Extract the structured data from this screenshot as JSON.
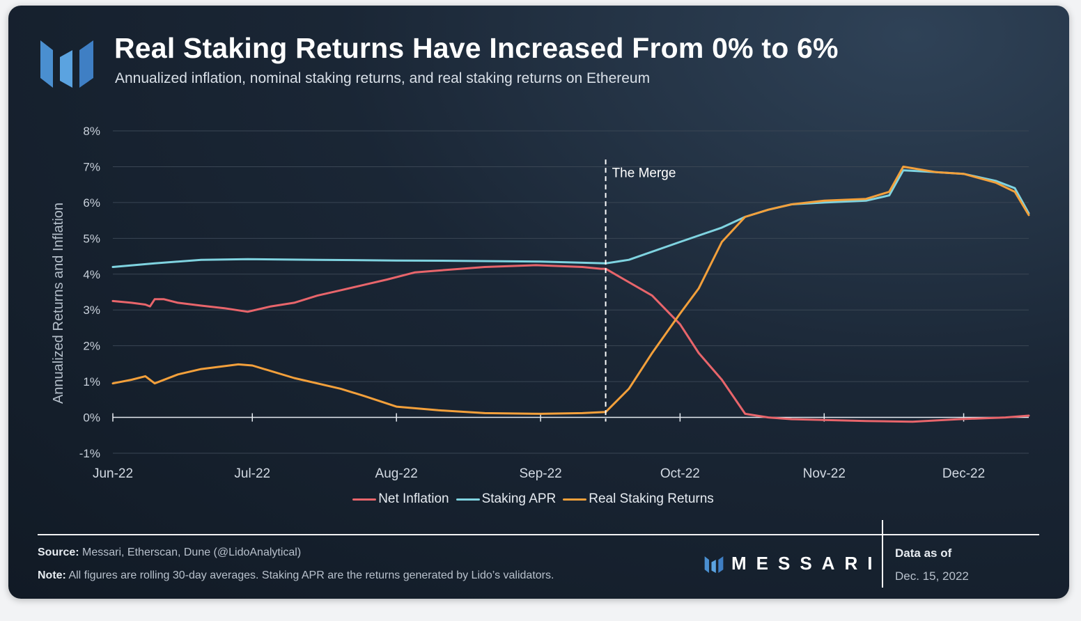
{
  "header": {
    "title": "Real Staking Returns Have Increased From 0% to 6%",
    "subtitle": "Annualized inflation, nominal staking returns, and real staking returns on Ethereum"
  },
  "footer": {
    "source_label": "Source:",
    "source_text": "Messari, Etherscan, Dune (@LidoAnalytical)",
    "note_label": "Note:",
    "note_text": "All figures are rolling 30-day averages. Staking APR are the returns generated by Lido’s validators.",
    "brand": "MESSARI",
    "data_as_of_label": "Data as of",
    "data_as_of_date": "Dec. 15, 2022"
  },
  "colors": {
    "net_inflation": "#e8656b",
    "staking_apr": "#7fd3e0",
    "real_staking_returns": "#f3a03b",
    "logo": "#5b9bd5"
  },
  "icons": {
    "logo": "messari-logo-icon"
  },
  "chart_data": {
    "type": "line",
    "ylabel": "Annualized Returns and Inflation",
    "xlabel": "",
    "ylim": [
      -1,
      8
    ],
    "y_ticks": [
      "-1%",
      "0%",
      "1%",
      "2%",
      "3%",
      "4%",
      "5%",
      "6%",
      "7%",
      "8%"
    ],
    "x_ticks": [
      "Jun-22",
      "Jul-22",
      "Aug-22",
      "Sep-22",
      "Oct-22",
      "Nov-22",
      "Dec-22"
    ],
    "x_tick_dates": [
      "2022-06-01",
      "2022-07-01",
      "2022-08-01",
      "2022-09-01",
      "2022-10-01",
      "2022-11-01",
      "2022-12-01"
    ],
    "xlim": [
      "2022-06-01",
      "2022-12-15"
    ],
    "grid": true,
    "legend": "bottom",
    "annotation": {
      "text": "The Merge",
      "date": "2022-09-15"
    },
    "series": [
      {
        "name": "Net Inflation",
        "points": [
          [
            "2022-06-01",
            3.25
          ],
          [
            "2022-06-05",
            3.2
          ],
          [
            "2022-06-08",
            3.15
          ],
          [
            "2022-06-09",
            3.1
          ],
          [
            "2022-06-10",
            3.3
          ],
          [
            "2022-06-12",
            3.3
          ],
          [
            "2022-06-15",
            3.2
          ],
          [
            "2022-06-20",
            3.12
          ],
          [
            "2022-06-25",
            3.05
          ],
          [
            "2022-06-30",
            2.95
          ],
          [
            "2022-07-05",
            3.1
          ],
          [
            "2022-07-10",
            3.2
          ],
          [
            "2022-07-15",
            3.4
          ],
          [
            "2022-07-20",
            3.55
          ],
          [
            "2022-07-25",
            3.7
          ],
          [
            "2022-07-30",
            3.85
          ],
          [
            "2022-08-05",
            4.05
          ],
          [
            "2022-08-10",
            4.1
          ],
          [
            "2022-08-20",
            4.2
          ],
          [
            "2022-08-31",
            4.25
          ],
          [
            "2022-09-10",
            4.2
          ],
          [
            "2022-09-14",
            4.15
          ],
          [
            "2022-09-15",
            4.15
          ],
          [
            "2022-09-25",
            3.4
          ],
          [
            "2022-10-01",
            2.6
          ],
          [
            "2022-10-05",
            1.8
          ],
          [
            "2022-10-10",
            1.05
          ],
          [
            "2022-10-15",
            0.1
          ],
          [
            "2022-10-20",
            0.0
          ],
          [
            "2022-10-25",
            -0.05
          ],
          [
            "2022-11-10",
            -0.1
          ],
          [
            "2022-11-20",
            -0.12
          ],
          [
            "2022-11-30",
            -0.05
          ],
          [
            "2022-12-10",
            0.0
          ],
          [
            "2022-12-15",
            0.05
          ]
        ]
      },
      {
        "name": "Staking APR",
        "points": [
          [
            "2022-06-01",
            4.2
          ],
          [
            "2022-06-10",
            4.3
          ],
          [
            "2022-06-20",
            4.4
          ],
          [
            "2022-06-30",
            4.42
          ],
          [
            "2022-07-15",
            4.4
          ],
          [
            "2022-08-01",
            4.38
          ],
          [
            "2022-08-15",
            4.37
          ],
          [
            "2022-09-01",
            4.35
          ],
          [
            "2022-09-15",
            4.3
          ],
          [
            "2022-09-20",
            4.4
          ],
          [
            "2022-10-01",
            4.9
          ],
          [
            "2022-10-10",
            5.3
          ],
          [
            "2022-10-15",
            5.6
          ],
          [
            "2022-10-20",
            5.8
          ],
          [
            "2022-10-25",
            5.95
          ],
          [
            "2022-11-01",
            6.0
          ],
          [
            "2022-11-10",
            6.05
          ],
          [
            "2022-11-15",
            6.2
          ],
          [
            "2022-11-18",
            6.9
          ],
          [
            "2022-11-25",
            6.85
          ],
          [
            "2022-12-01",
            6.8
          ],
          [
            "2022-12-08",
            6.6
          ],
          [
            "2022-12-12",
            6.4
          ],
          [
            "2022-12-15",
            5.7
          ]
        ]
      },
      {
        "name": "Real Staking Returns",
        "points": [
          [
            "2022-06-01",
            0.95
          ],
          [
            "2022-06-05",
            1.05
          ],
          [
            "2022-06-08",
            1.15
          ],
          [
            "2022-06-10",
            0.95
          ],
          [
            "2022-06-15",
            1.2
          ],
          [
            "2022-06-20",
            1.35
          ],
          [
            "2022-06-28",
            1.48
          ],
          [
            "2022-07-01",
            1.45
          ],
          [
            "2022-07-10",
            1.1
          ],
          [
            "2022-07-20",
            0.8
          ],
          [
            "2022-07-25",
            0.6
          ],
          [
            "2022-08-01",
            0.3
          ],
          [
            "2022-08-10",
            0.2
          ],
          [
            "2022-08-20",
            0.12
          ],
          [
            "2022-09-01",
            0.1
          ],
          [
            "2022-09-10",
            0.12
          ],
          [
            "2022-09-15",
            0.15
          ],
          [
            "2022-09-20",
            0.8
          ],
          [
            "2022-09-25",
            1.8
          ],
          [
            "2022-10-01",
            2.9
          ],
          [
            "2022-10-05",
            3.6
          ],
          [
            "2022-10-10",
            4.9
          ],
          [
            "2022-10-15",
            5.6
          ],
          [
            "2022-10-20",
            5.8
          ],
          [
            "2022-10-25",
            5.95
          ],
          [
            "2022-11-01",
            6.05
          ],
          [
            "2022-11-10",
            6.1
          ],
          [
            "2022-11-15",
            6.3
          ],
          [
            "2022-11-18",
            7.0
          ],
          [
            "2022-11-25",
            6.85
          ],
          [
            "2022-12-01",
            6.8
          ],
          [
            "2022-12-08",
            6.55
          ],
          [
            "2022-12-12",
            6.3
          ],
          [
            "2022-12-15",
            5.65
          ]
        ]
      }
    ]
  }
}
